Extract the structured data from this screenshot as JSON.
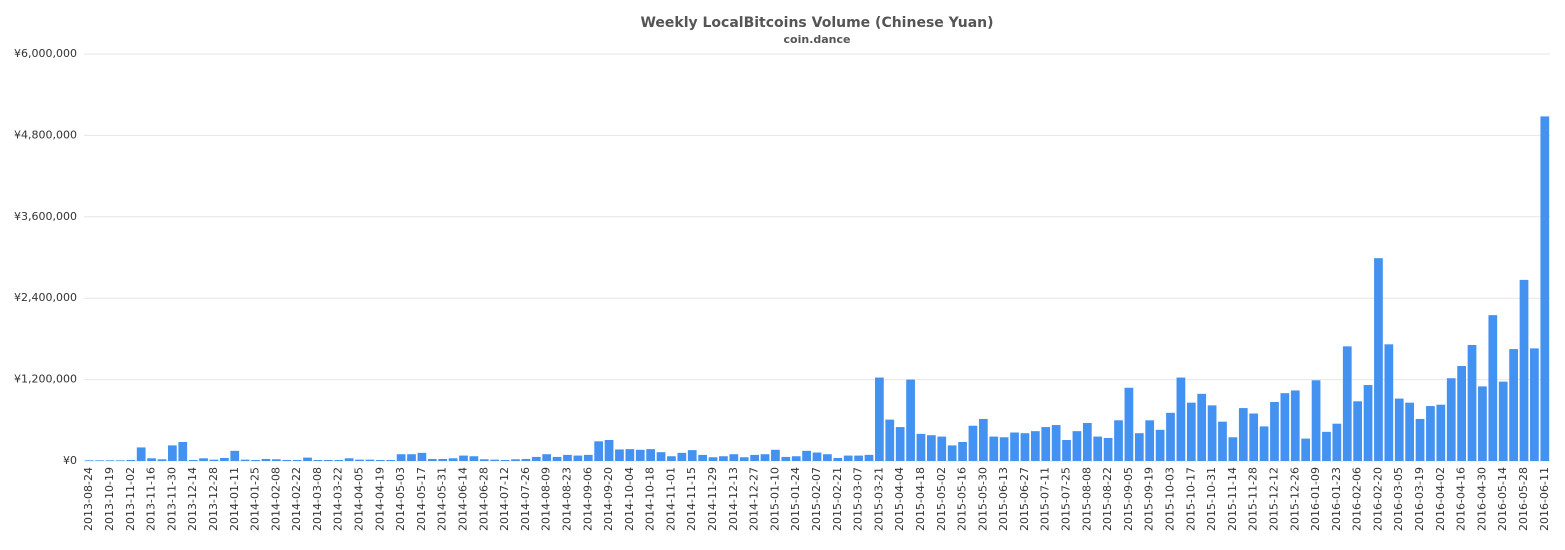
{
  "chart_data": {
    "type": "bar",
    "title": "Weekly LocalBitcoins Volume (Chinese Yuan)",
    "subtitle": "coin.dance",
    "categories": [
      "2013-08-24",
      null,
      "2013-10-19",
      null,
      "2013-11-02",
      null,
      "2013-11-16",
      null,
      "2013-11-30",
      null,
      "2013-12-14",
      null,
      "2013-12-28",
      null,
      "2014-01-11",
      null,
      "2014-01-25",
      null,
      "2014-02-08",
      null,
      "2014-02-22",
      null,
      "2014-03-08",
      null,
      "2014-03-22",
      null,
      "2014-04-05",
      null,
      "2014-04-19",
      null,
      "2014-05-03",
      null,
      "2014-05-17",
      null,
      "2014-05-31",
      null,
      "2014-06-14",
      null,
      "2014-06-28",
      null,
      "2014-07-12",
      null,
      "2014-07-26",
      null,
      "2014-08-09",
      null,
      "2014-08-23",
      null,
      "2014-09-06",
      null,
      "2014-09-20",
      null,
      "2014-10-04",
      null,
      "2014-10-18",
      null,
      "2014-11-01",
      null,
      "2014-11-15",
      null,
      "2014-11-29",
      null,
      "2014-12-13",
      null,
      "2014-12-27",
      null,
      "2015-01-10",
      null,
      "2015-01-24",
      null,
      "2015-02-07",
      null,
      "2015-02-21",
      null,
      "2015-03-07",
      null,
      "2015-03-21",
      null,
      "2015-04-04",
      null,
      "2015-04-18",
      null,
      "2015-05-02",
      null,
      "2015-05-16",
      null,
      "2015-05-30",
      null,
      "2015-06-13",
      null,
      "2015-06-27",
      null,
      "2015-07-11",
      null,
      "2015-07-25",
      null,
      "2015-08-08",
      null,
      "2015-08-22",
      null,
      "2015-09-05",
      null,
      "2015-09-19",
      null,
      "2015-10-03",
      null,
      "2015-10-17",
      null,
      "2015-10-31",
      null,
      "2015-11-14",
      null,
      "2015-11-28",
      null,
      "2015-12-12",
      null,
      "2015-12-26",
      null,
      "2016-01-09",
      null,
      "2016-01-23",
      null,
      "2016-02-06",
      null,
      "2016-02-20",
      null,
      "2016-03-05",
      null,
      "2016-03-19",
      null,
      "2016-04-02",
      null,
      "2016-04-16",
      null,
      "2016-04-30",
      null,
      "2016-05-14",
      null,
      "2016-05-28",
      null,
      "2016-06-11"
    ],
    "values": [
      10000,
      10000,
      10000,
      10000,
      15000,
      200000,
      40000,
      25000,
      230000,
      280000,
      15000,
      40000,
      20000,
      45000,
      150000,
      20000,
      15000,
      30000,
      25000,
      15000,
      15000,
      50000,
      15000,
      15000,
      15000,
      40000,
      20000,
      20000,
      15000,
      15000,
      100000,
      100000,
      120000,
      30000,
      30000,
      40000,
      80000,
      70000,
      25000,
      20000,
      15000,
      25000,
      30000,
      60000,
      100000,
      60000,
      90000,
      80000,
      90000,
      290000,
      310000,
      170000,
      175000,
      165000,
      175000,
      130000,
      70000,
      120000,
      160000,
      90000,
      55000,
      70000,
      100000,
      55000,
      90000,
      100000,
      165000,
      60000,
      70000,
      150000,
      125000,
      100000,
      45000,
      80000,
      80000,
      90000,
      1230000,
      610000,
      500000,
      1200000,
      400000,
      380000,
      360000,
      230000,
      280000,
      520000,
      620000,
      360000,
      350000,
      420000,
      410000,
      440000,
      500000,
      530000,
      310000,
      440000,
      560000,
      360000,
      340000,
      600000,
      1080000,
      410000,
      600000,
      460000,
      710000,
      1230000,
      860000,
      990000,
      820000,
      580000,
      350000,
      780000,
      700000,
      510000,
      870000,
      1000000,
      1040000,
      330000,
      1190000,
      430000,
      550000,
      1690000,
      880000,
      1120000,
      2990000,
      1720000,
      920000,
      860000,
      620000,
      810000,
      830000,
      1220000,
      1400000,
      1710000,
      1100000,
      2150000,
      1170000,
      1650000,
      2670000,
      1660000,
      5080000
    ],
    "color": "#4391f0",
    "ylim": [
      0,
      6000000
    ],
    "yticks": [
      {
        "value": 0,
        "label": "¥0"
      },
      {
        "value": 1200000,
        "label": "¥1,200,000"
      },
      {
        "value": 2400000,
        "label": "¥2,400,000"
      },
      {
        "value": 3600000,
        "label": "¥3,600,000"
      },
      {
        "value": 4800000,
        "label": "¥4,800,000"
      },
      {
        "value": 6000000,
        "label": "¥6,000,000"
      }
    ],
    "grid": true
  }
}
